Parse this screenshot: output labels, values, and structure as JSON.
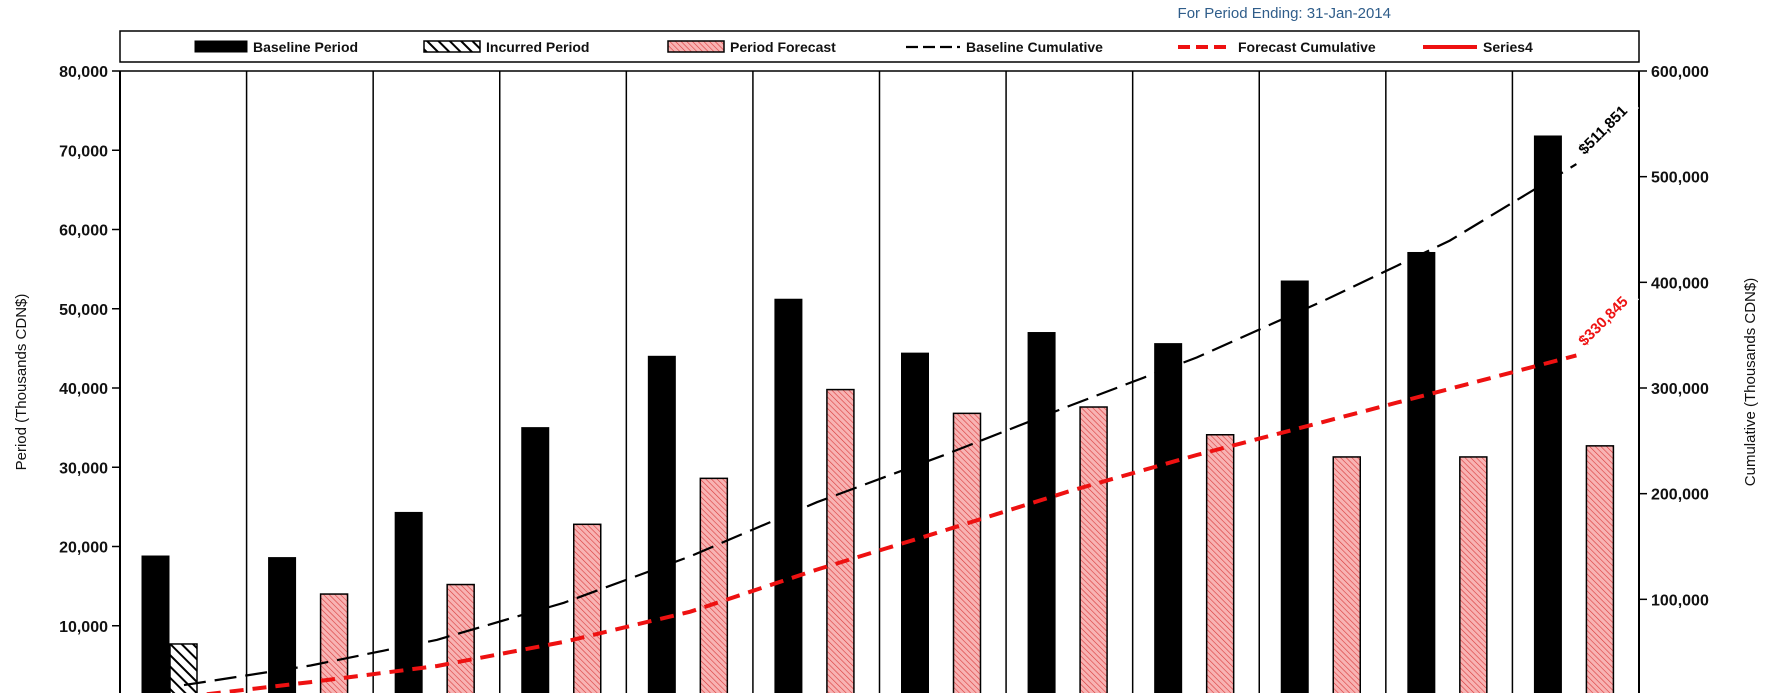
{
  "header": {
    "period_label": "For Period Ending: 31-Jan-2014"
  },
  "colors": {
    "baseline_bar": "#000000",
    "forecast_bar": "#f6a3a3",
    "forecast_hatch": "#d93a3a",
    "baseline_cum": "#000000",
    "forecast_cum": "#ee1111",
    "series4": "#ee1111",
    "header_text": "#2f5d8a"
  },
  "chart_data": {
    "type": "bar",
    "legend_position": "top",
    "grid": false,
    "categories_count": 12,
    "ylabel": "Period (Thousands CDN$)",
    "y2label": "Cumulative (Thousands CDN$)",
    "ylim": [
      0,
      80000
    ],
    "y2lim": [
      0,
      600000
    ],
    "y_ticks": [
      "10,000",
      "20,000",
      "30,000",
      "40,000",
      "50,000",
      "60,000",
      "70,000",
      "80,000"
    ],
    "y2_ticks": [
      "100,000",
      "200,000",
      "300,000",
      "400,000",
      "500,000",
      "600,000"
    ],
    "legend": [
      "Baseline Period",
      "Incurred Period",
      "Period Forecast",
      "Baseline Cumulative",
      "Forecast Cumulative",
      "Series4"
    ],
    "series": [
      {
        "name": "Baseline Period",
        "kind": "bar",
        "axis": "left",
        "values": [
          18800,
          18600,
          24300,
          35000,
          44000,
          51200,
          44400,
          47000,
          45600,
          53500,
          57100,
          71800
        ]
      },
      {
        "name": "Incurred Period",
        "kind": "bar",
        "axis": "left",
        "values": [
          7700,
          null,
          null,
          null,
          null,
          null,
          null,
          null,
          null,
          null,
          null,
          null
        ]
      },
      {
        "name": "Period Forecast",
        "kind": "bar",
        "axis": "left",
        "values": [
          null,
          14000,
          15200,
          22800,
          28600,
          39800,
          36800,
          37600,
          34100,
          31300,
          31300,
          32700
        ]
      },
      {
        "name": "Baseline Cumulative",
        "kind": "line",
        "axis": "right",
        "values": [
          18800,
          37400,
          61700,
          96700,
          140700,
          191900,
          236300,
          283300,
          328900,
          382400,
          439500,
          511851
        ]
      },
      {
        "name": "Forecast Cumulative",
        "kind": "line",
        "axis": "right",
        "values": [
          7700,
          21700,
          36900,
          59700,
          88300,
          128100,
          164900,
          202500,
          236600,
          267900,
          299200,
          330845
        ]
      }
    ],
    "annotations": [
      {
        "text": "$511,851",
        "series": "Baseline Cumulative",
        "category_index": 11
      },
      {
        "text": "$330,845",
        "series": "Forecast Cumulative",
        "category_index": 11
      }
    ]
  }
}
